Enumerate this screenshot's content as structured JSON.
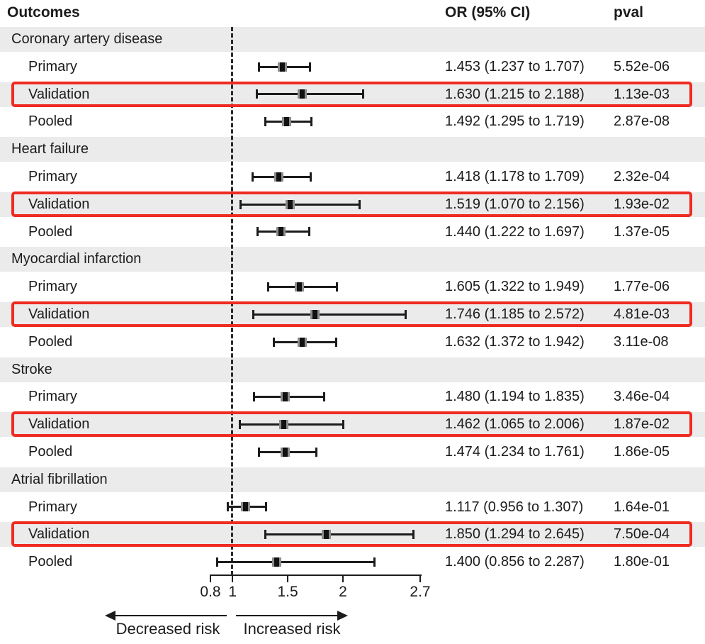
{
  "ui": {
    "header": {
      "outcomes": "Outcomes",
      "or_ci": "OR (95% CI)",
      "pval": "pval"
    }
  },
  "colors": {
    "band": "#ebebeb",
    "highlight_border": "#ee2c22",
    "ink": "#1c1c1c"
  },
  "chart_data": {
    "type": "forest",
    "title": "",
    "xlabel": "",
    "x_scale": "linear",
    "xlim": [
      0.8,
      2.7
    ],
    "reference_value": 1,
    "axis": {
      "ticks": [
        0.8,
        1,
        1.5,
        2,
        2.7
      ],
      "tick_labels": [
        "0.8",
        "1",
        "1.5",
        "2",
        "2.7"
      ],
      "decreased_label": "Decreased risk",
      "increased_label": "Increased risk"
    },
    "columns": [
      "Outcomes",
      "OR (95% CI)",
      "pval"
    ],
    "groups": [
      {
        "label": "Coronary artery disease",
        "rows": [
          {
            "label": "Primary",
            "or": 1.453,
            "ci_low": 1.237,
            "ci_high": 1.707,
            "or_ci_text": "1.453 (1.237 to 1.707)",
            "pval": "5.52e-06",
            "highlighted": false
          },
          {
            "label": "Validation",
            "or": 1.63,
            "ci_low": 1.215,
            "ci_high": 2.188,
            "or_ci_text": "1.630 (1.215 to 2.188)",
            "pval": "1.13e-03",
            "highlighted": true
          },
          {
            "label": "Pooled",
            "or": 1.492,
            "ci_low": 1.295,
            "ci_high": 1.719,
            "or_ci_text": "1.492 (1.295 to 1.719)",
            "pval": "2.87e-08",
            "highlighted": false
          }
        ]
      },
      {
        "label": "Heart failure",
        "rows": [
          {
            "label": "Primary",
            "or": 1.418,
            "ci_low": 1.178,
            "ci_high": 1.709,
            "or_ci_text": "1.418 (1.178 to 1.709)",
            "pval": "2.32e-04",
            "highlighted": false
          },
          {
            "label": "Validation",
            "or": 1.519,
            "ci_low": 1.07,
            "ci_high": 2.156,
            "or_ci_text": "1.519 (1.070 to 2.156)",
            "pval": "1.93e-02",
            "highlighted": true
          },
          {
            "label": "Pooled",
            "or": 1.44,
            "ci_low": 1.222,
            "ci_high": 1.697,
            "or_ci_text": "1.440 (1.222 to 1.697)",
            "pval": "1.37e-05",
            "highlighted": false
          }
        ]
      },
      {
        "label": "Myocardial infarction",
        "rows": [
          {
            "label": "Primary",
            "or": 1.605,
            "ci_low": 1.322,
            "ci_high": 1.949,
            "or_ci_text": "1.605 (1.322 to 1.949)",
            "pval": "1.77e-06",
            "highlighted": false
          },
          {
            "label": "Validation",
            "or": 1.746,
            "ci_low": 1.185,
            "ci_high": 2.572,
            "or_ci_text": "1.746 (1.185 to 2.572)",
            "pval": "4.81e-03",
            "highlighted": true
          },
          {
            "label": "Pooled",
            "or": 1.632,
            "ci_low": 1.372,
            "ci_high": 1.942,
            "or_ci_text": "1.632 (1.372 to 1.942)",
            "pval": "3.11e-08",
            "highlighted": false
          }
        ]
      },
      {
        "label": "Stroke",
        "rows": [
          {
            "label": "Primary",
            "or": 1.48,
            "ci_low": 1.194,
            "ci_high": 1.835,
            "or_ci_text": "1.480 (1.194 to 1.835)",
            "pval": "3.46e-04",
            "highlighted": false
          },
          {
            "label": "Validation",
            "or": 1.462,
            "ci_low": 1.065,
            "ci_high": 2.006,
            "or_ci_text": "1.462 (1.065 to 2.006)",
            "pval": "1.87e-02",
            "highlighted": true
          },
          {
            "label": "Pooled",
            "or": 1.474,
            "ci_low": 1.234,
            "ci_high": 1.761,
            "or_ci_text": "1.474 (1.234 to 1.761)",
            "pval": "1.86e-05",
            "highlighted": false
          }
        ]
      },
      {
        "label": "Atrial fibrillation",
        "rows": [
          {
            "label": "Primary",
            "or": 1.117,
            "ci_low": 0.956,
            "ci_high": 1.307,
            "or_ci_text": "1.117 (0.956 to 1.307)",
            "pval": "1.64e-01",
            "highlighted": false
          },
          {
            "label": "Validation",
            "or": 1.85,
            "ci_low": 1.294,
            "ci_high": 2.645,
            "or_ci_text": "1.850 (1.294 to 2.645)",
            "pval": "7.50e-04",
            "highlighted": true
          },
          {
            "label": "Pooled",
            "or": 1.4,
            "ci_low": 0.856,
            "ci_high": 2.287,
            "or_ci_text": "1.400 (0.856 to 2.287)",
            "pval": "1.80e-01",
            "highlighted": false
          }
        ]
      }
    ]
  }
}
